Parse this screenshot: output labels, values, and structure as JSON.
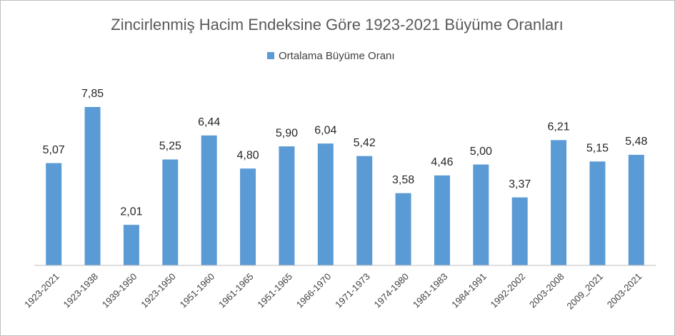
{
  "chart_data": {
    "type": "bar",
    "title": "Zincirlenmiş Hacim Endeksine Göre 1923-2021 Büyüme Oranları",
    "series": [
      {
        "name": "Ortalama Büyüme Oranı",
        "color": "#5b9bd5",
        "values": [
          5.07,
          7.85,
          2.01,
          5.25,
          6.44,
          4.8,
          5.9,
          6.04,
          5.42,
          3.58,
          4.46,
          5.0,
          3.37,
          6.21,
          5.15,
          5.48
        ],
        "value_labels": [
          "5,07",
          "7,85",
          "2,01",
          "5,25",
          "6,44",
          "4,80",
          "5,90",
          "6,04",
          "5,42",
          "3,58",
          "4,46",
          "5,00",
          "3,37",
          "6,21",
          "5,15",
          "5,48"
        ]
      }
    ],
    "categories": [
      "1923-2021",
      "1923-1938",
      "1939-1950",
      "1923-1950",
      "1951-1960",
      "1961-1965",
      "1951-1965",
      "1966-1970",
      "1971-1973",
      "1974-1980",
      "1981-1983",
      "1984-1991",
      "1992-2002",
      "2003-2008",
      "2009_2021",
      "2003-2021"
    ],
    "legend": "top"
  }
}
